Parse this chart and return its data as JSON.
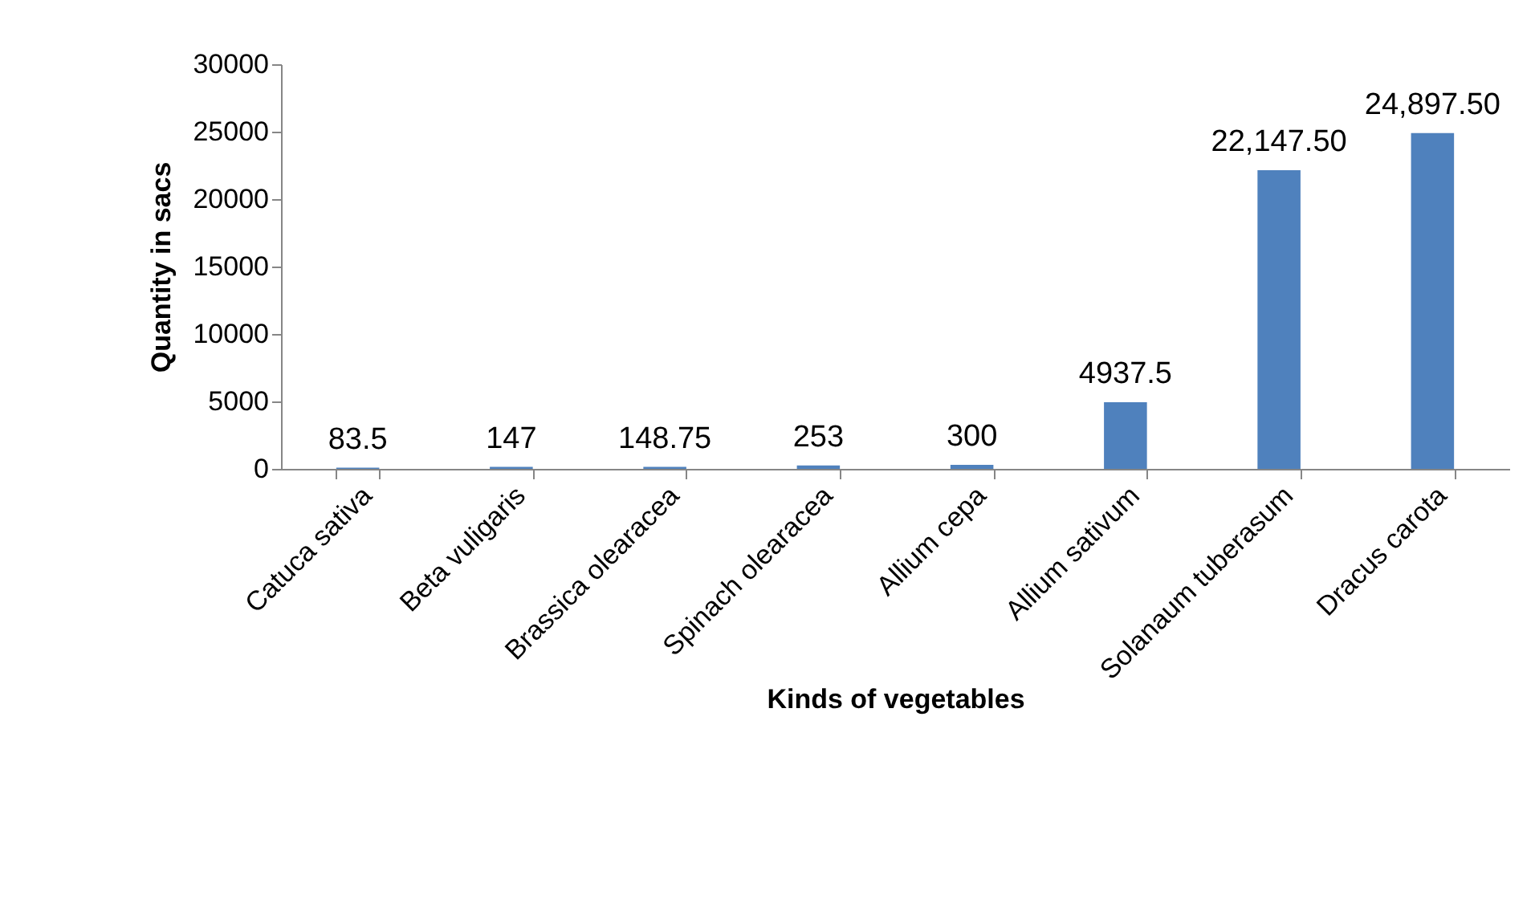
{
  "chart_data": {
    "type": "bar",
    "xlabel": "Kinds of vegetables",
    "ylabel": "Quantity in sacs",
    "categories": [
      "Catuca sativa",
      "Beta vuligaris",
      "Brassica olearacea",
      "Spinach olearacea",
      "Allium cepa",
      "Allium sativum",
      "Solanaum tuberasum",
      "Dracus carota"
    ],
    "values": [
      83.5,
      147,
      148.75,
      253,
      300,
      4937.5,
      22147.5,
      24897.5
    ],
    "value_labels": [
      "83.5",
      "147",
      "148.75",
      "253",
      "300",
      "4937.5",
      "22,147.50",
      "24,897.50"
    ],
    "color": "#4f81bd",
    "ylim": [
      0,
      30000
    ],
    "yticks": [
      0,
      5000,
      10000,
      15000,
      20000,
      25000,
      30000
    ],
    "grid": false
  }
}
